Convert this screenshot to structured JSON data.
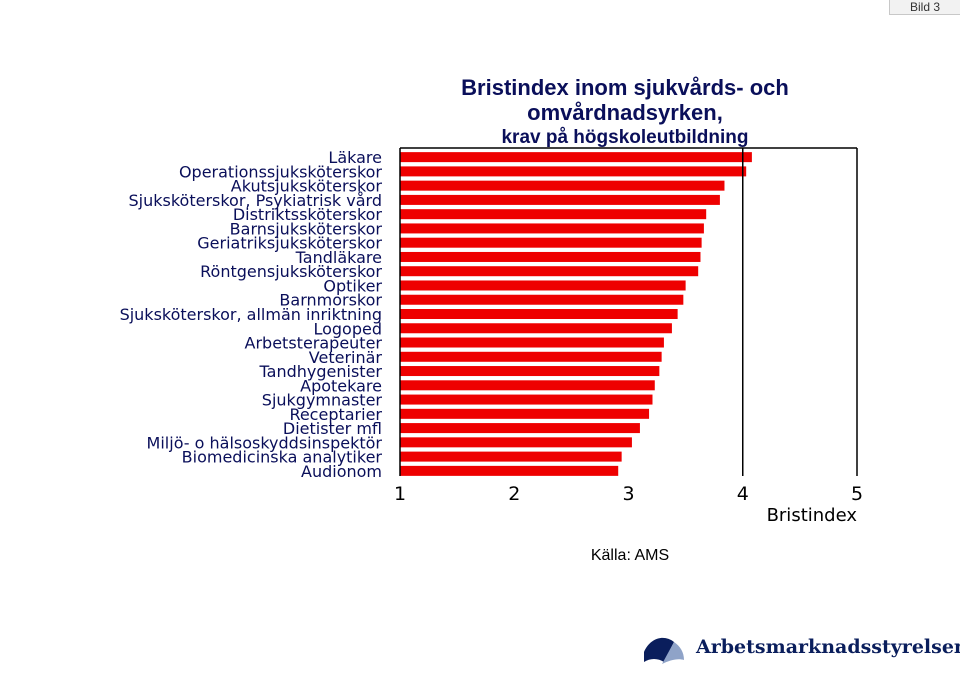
{
  "slide_badge": "Bild 3",
  "header": {
    "title_line1": "Bristindex inom sjukvårds- och",
    "title_line2": "omvårdnadsyrken,",
    "subtitle": "krav på högskoleutbildning"
  },
  "source": "Källa: AMS",
  "logo": {
    "text": "Arbetsmarknadsstyrelsen",
    "icon": "ams-logo-icon"
  },
  "colors": {
    "bar": "#ee0000",
    "axis": "#000000",
    "label": "#0a0f5a"
  },
  "chart_data": {
    "type": "bar",
    "orientation": "horizontal",
    "categories": [
      "Läkare",
      "Operationssjuksköterskor",
      "Akutsjuksköterskor",
      "Sjuksköterskor, Psykiatrisk vård",
      "Distriktssköterskor",
      "Barnsjuksköterskor",
      "Geriatriksjuksköterskor",
      "Tandläkare",
      "Röntgensjuksköterskor",
      "Optiker",
      "Barnmorskor",
      "Sjuksköterskor, allmän inriktning",
      "Logoped",
      "Arbetsterapeuter",
      "Veterinär",
      "Tandhygenister",
      "Apotekare",
      "Sjukgymnaster",
      "Receptarier",
      "Dietister mfl",
      "Miljö- o hälsoskyddsinspektör",
      "Biomedicinska analytiker",
      "Audionom"
    ],
    "values": [
      4.08,
      4.03,
      3.84,
      3.8,
      3.68,
      3.66,
      3.64,
      3.63,
      3.61,
      3.5,
      3.48,
      3.43,
      3.38,
      3.31,
      3.29,
      3.27,
      3.23,
      3.21,
      3.18,
      3.1,
      3.03,
      2.94,
      2.91
    ],
    "xlim": [
      1,
      5
    ],
    "xticks": [
      "1",
      "2",
      "3",
      "4",
      "5"
    ],
    "xlabel": "Bristindex",
    "grid": "vertical at 4"
  }
}
